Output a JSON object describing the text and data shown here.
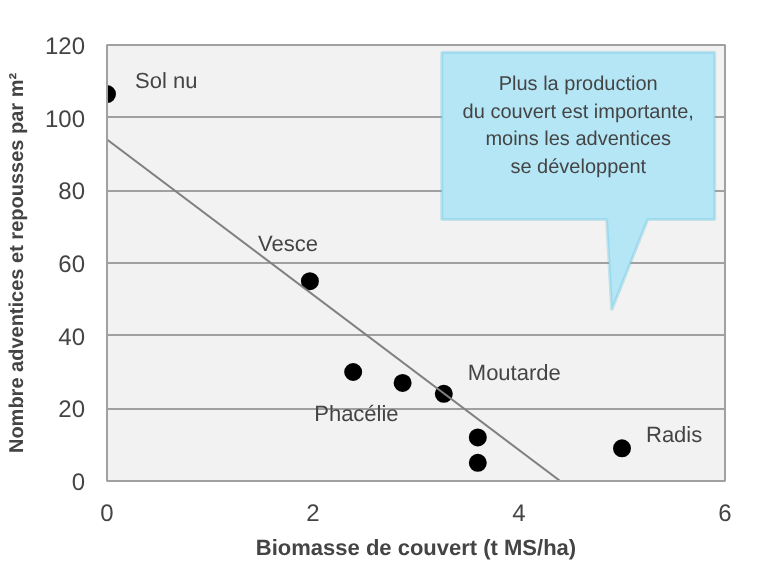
{
  "chart_data": {
    "type": "scatter",
    "xlabel": "Biomasse de couvert (t MS/ha)",
    "ylabel": "Nombre adventices et repousses par m²",
    "xlim": [
      0,
      6
    ],
    "ylim": [
      0,
      120
    ],
    "xticks": [
      0,
      2,
      4,
      6
    ],
    "yticks": [
      0,
      20,
      40,
      60,
      80,
      100,
      120
    ],
    "grid": "y",
    "series": [
      {
        "marker": "circle",
        "color": "#000000",
        "x": [
          0,
          1.97,
          2.39,
          2.87,
          3.27,
          3.6,
          3.6,
          5.0
        ],
        "values": [
          106.5,
          55,
          30,
          27,
          24,
          12,
          5,
          9
        ]
      },
      {
        "type": "line",
        "color": "#7f7f7f",
        "x": [
          0,
          4.4
        ],
        "values": [
          94,
          0
        ]
      }
    ],
    "annotations": [
      {
        "text": "Sol nu",
        "x": 0,
        "y": 106.5
      },
      {
        "text": "Vesce",
        "x": 1.97,
        "y": 55
      },
      {
        "text": "Phacélie",
        "x": 2.87,
        "y": 27
      },
      {
        "text": "Moutarde",
        "x": 3.27,
        "y": 24
      },
      {
        "text": "Radis",
        "x": 5.0,
        "y": 9
      },
      "Plus la production\ndu couvert est importante,\nmoins les adventices\nse développent"
    ]
  }
}
